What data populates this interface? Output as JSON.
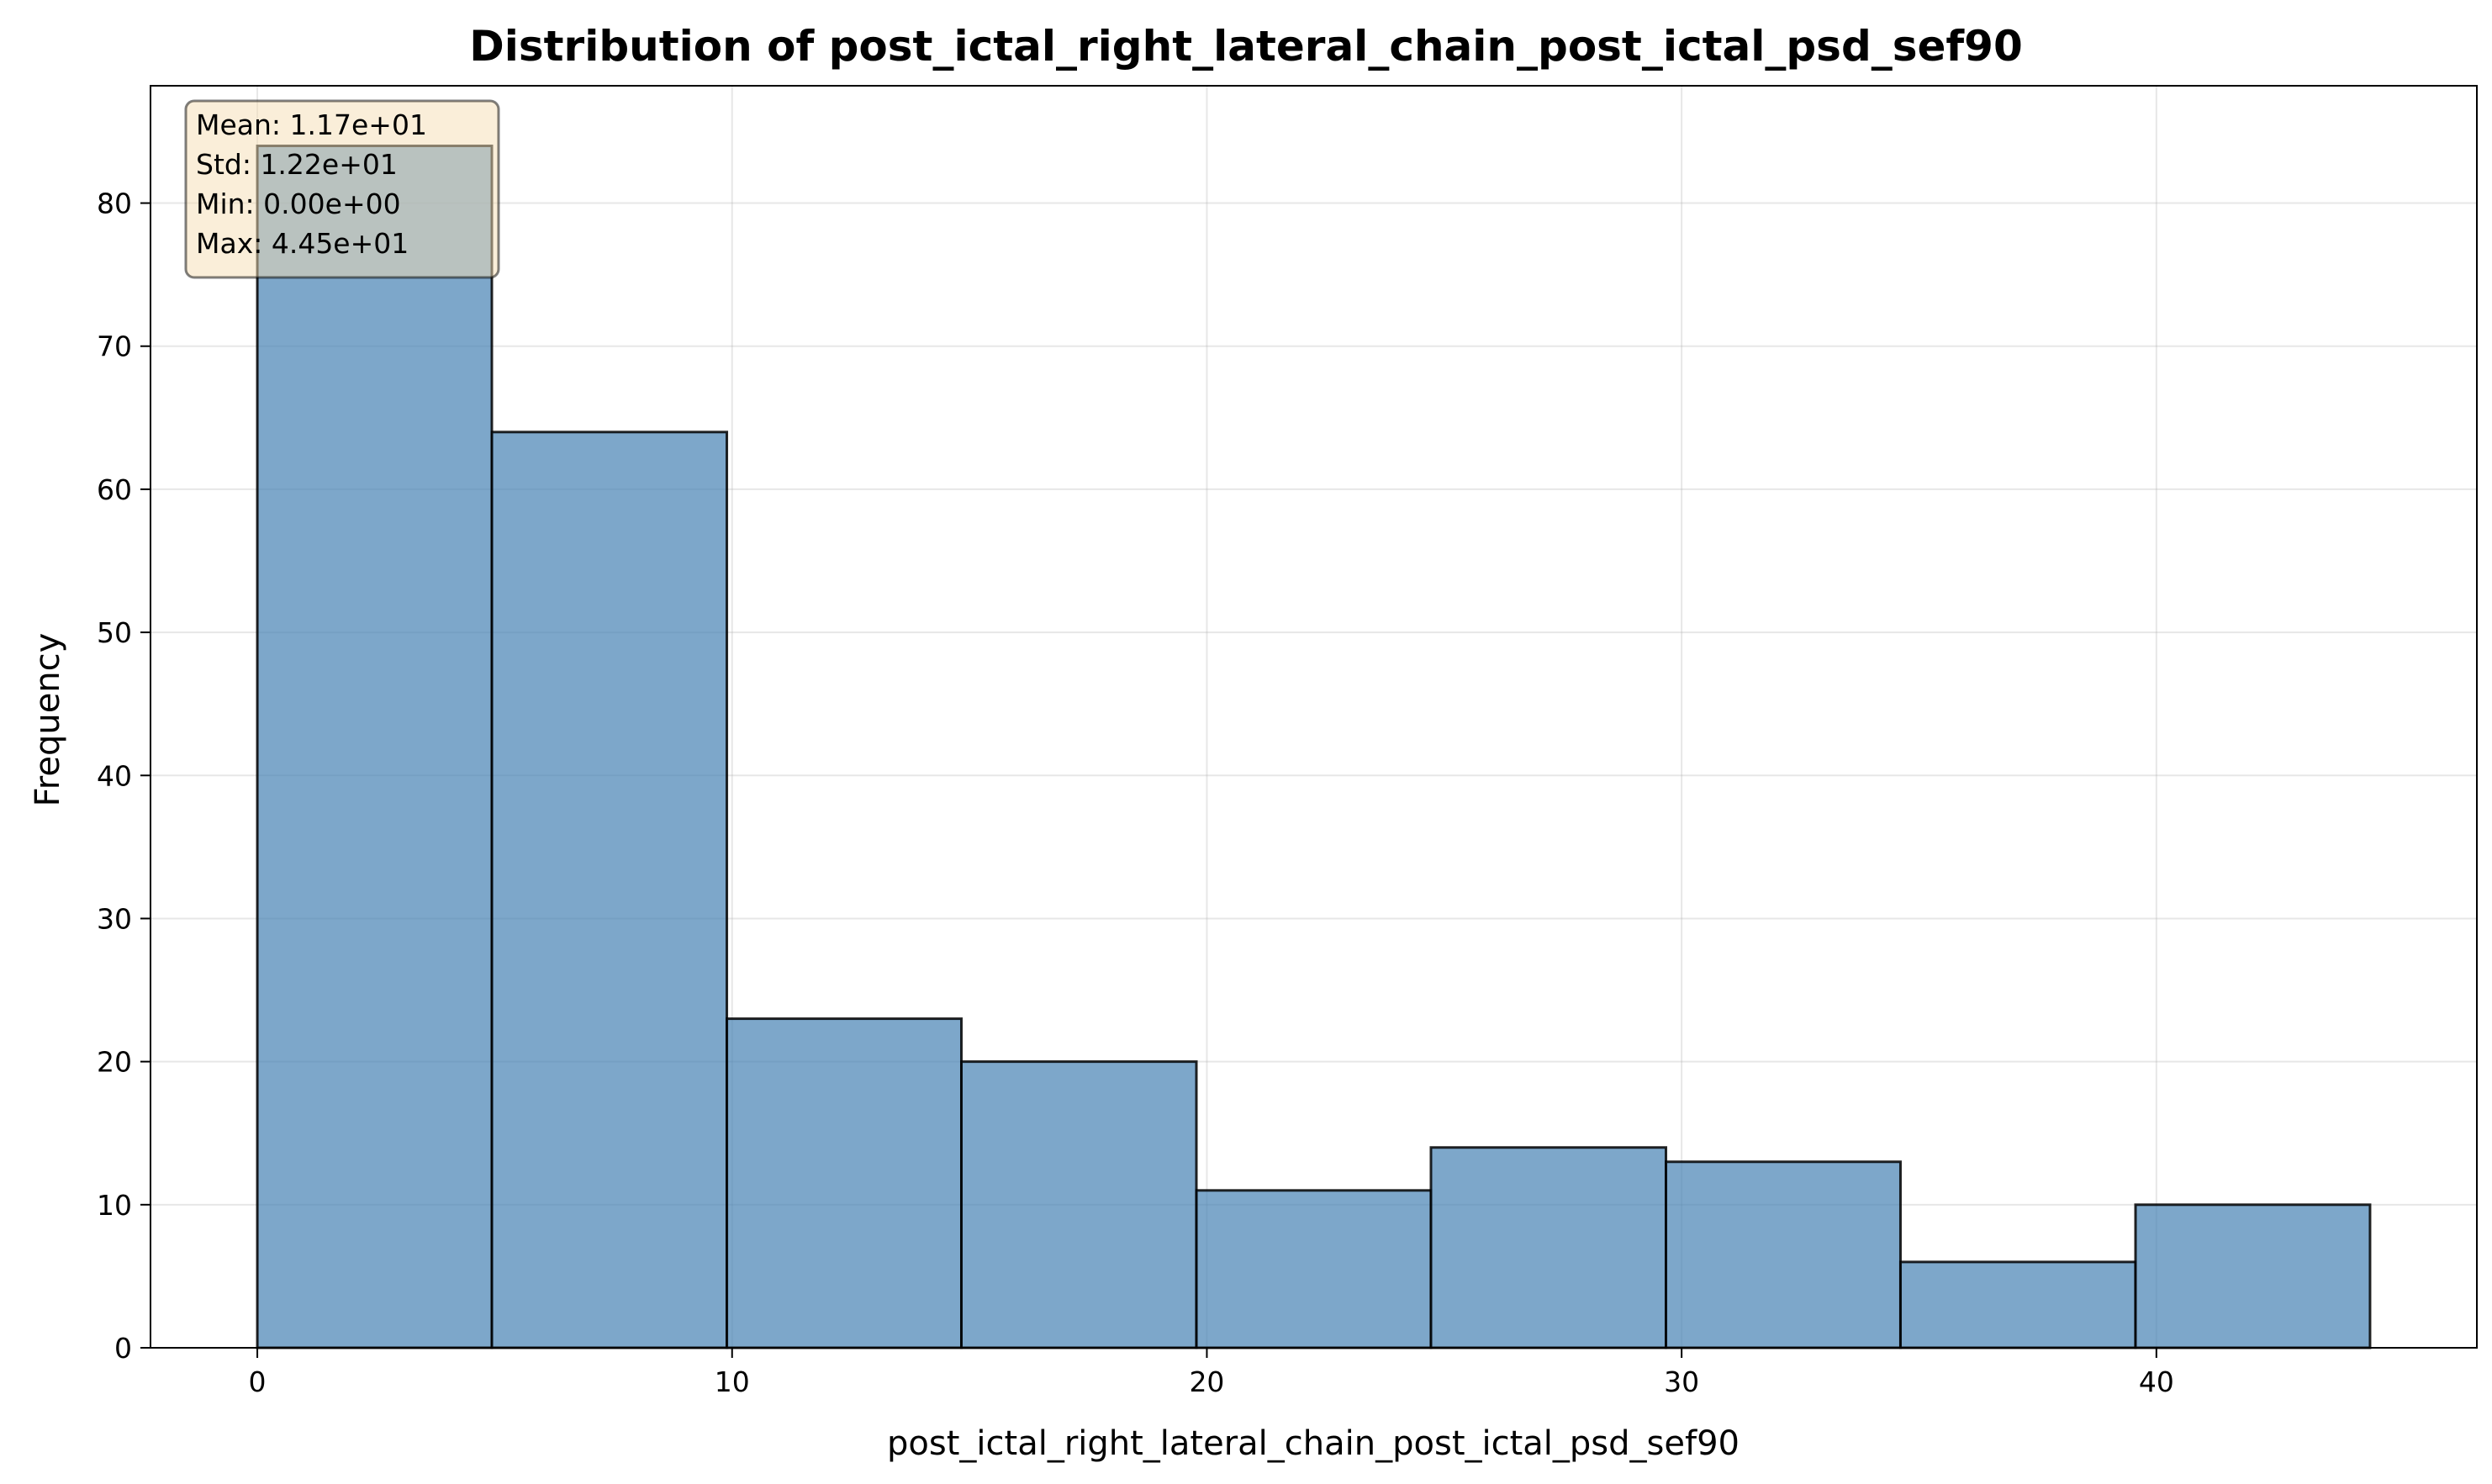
{
  "chart_data": {
    "type": "bar",
    "title": "Distribution of post_ictal_right_lateral_chain_post_ictal_psd_sef90",
    "xlabel": "post_ictal_right_lateral_chain_post_ictal_psd_sef90",
    "ylabel": "Frequency",
    "bin_edges": [
      0,
      4.94,
      9.89,
      14.83,
      19.78,
      24.72,
      29.67,
      34.61,
      39.56,
      44.5
    ],
    "values": [
      84,
      64,
      23,
      20,
      11,
      14,
      13,
      6,
      10
    ],
    "xlim": [
      -2.25,
      46.75
    ],
    "ylim": [
      0,
      88.2
    ],
    "xticks": [
      0,
      10,
      20,
      30,
      40
    ],
    "yticks": [
      0,
      10,
      20,
      30,
      40,
      50,
      60,
      70,
      80
    ],
    "grid": true,
    "bar_color": "#4682b4",
    "stats_box": {
      "placement": "top-left",
      "background": "#f5deb3",
      "lines": [
        "Mean: 1.17e+01",
        "Std: 1.22e+01",
        "Min: 0.00e+00",
        "Max: 4.45e+01"
      ]
    }
  }
}
